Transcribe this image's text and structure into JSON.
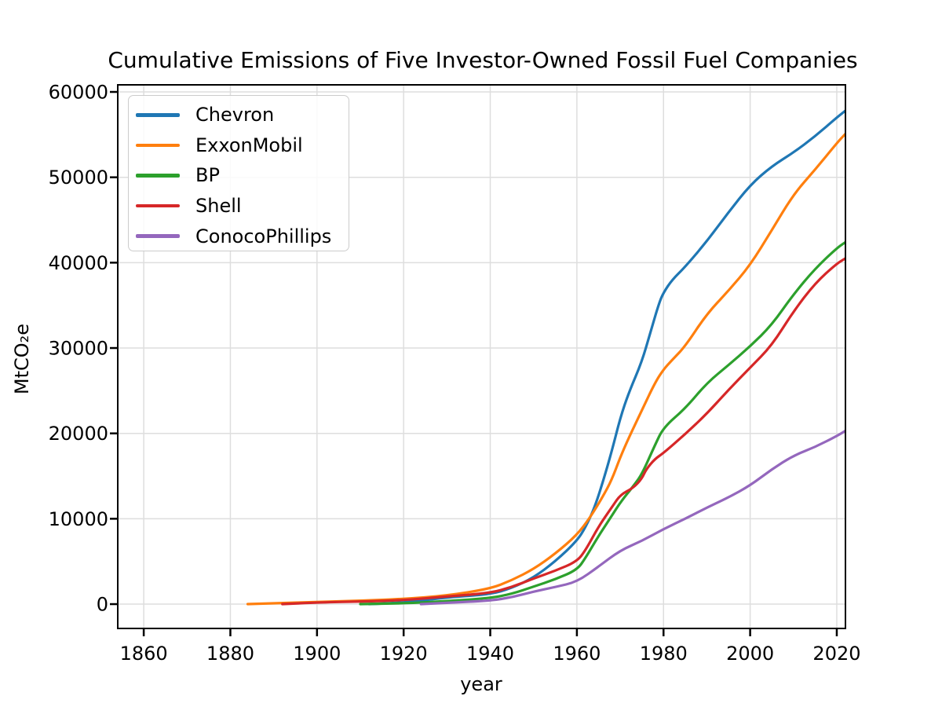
{
  "chart_data": {
    "type": "line",
    "title": "Cumulative Emissions of Five Investor-Owned Fossil Fuel Companies",
    "xlabel": "year",
    "ylabel": "MtCO₂e",
    "xlim": [
      1854,
      2022
    ],
    "ylim": [
      -2850,
      60830
    ],
    "x_ticks": [
      1860,
      1880,
      1900,
      1920,
      1940,
      1960,
      1980,
      2000,
      2020
    ],
    "y_ticks": [
      0,
      10000,
      20000,
      30000,
      40000,
      50000,
      60000
    ],
    "grid": true,
    "grid_color": "#dedede",
    "spine_color": "#000000",
    "legend_position": "upper left",
    "series": [
      {
        "name": "Chevron",
        "color": "#1f77b4",
        "points": [
          [
            1912,
            0
          ],
          [
            1920,
            150
          ],
          [
            1930,
            800
          ],
          [
            1940,
            1130
          ],
          [
            1945,
            1900
          ],
          [
            1950,
            3100
          ],
          [
            1955,
            5000
          ],
          [
            1960,
            7400
          ],
          [
            1962,
            9000
          ],
          [
            1964,
            11200
          ],
          [
            1966,
            14300
          ],
          [
            1968,
            17800
          ],
          [
            1970,
            21800
          ],
          [
            1972,
            24800
          ],
          [
            1975,
            28400
          ],
          [
            1977,
            31900
          ],
          [
            1979,
            35300
          ],
          [
            1980,
            36500
          ],
          [
            1982,
            38000
          ],
          [
            1985,
            39500
          ],
          [
            1990,
            42500
          ],
          [
            1995,
            45900
          ],
          [
            2000,
            49100
          ],
          [
            2005,
            51300
          ],
          [
            2010,
            52900
          ],
          [
            2015,
            54800
          ],
          [
            2020,
            57000
          ],
          [
            2022,
            57800
          ]
        ]
      },
      {
        "name": "ExxonMobil",
        "color": "#ff7f0e",
        "points": [
          [
            1884,
            0
          ],
          [
            1890,
            100
          ],
          [
            1900,
            250
          ],
          [
            1910,
            400
          ],
          [
            1920,
            600
          ],
          [
            1930,
            1000
          ],
          [
            1940,
            1800
          ],
          [
            1945,
            2800
          ],
          [
            1950,
            4100
          ],
          [
            1955,
            5900
          ],
          [
            1960,
            8100
          ],
          [
            1963,
            10100
          ],
          [
            1966,
            12600
          ],
          [
            1968,
            14500
          ],
          [
            1970,
            17200
          ],
          [
            1972,
            19500
          ],
          [
            1975,
            22700
          ],
          [
            1978,
            25900
          ],
          [
            1980,
            27500
          ],
          [
            1982,
            28600
          ],
          [
            1985,
            30200
          ],
          [
            1990,
            34000
          ],
          [
            1995,
            36700
          ],
          [
            2000,
            39700
          ],
          [
            2005,
            43800
          ],
          [
            2010,
            48000
          ],
          [
            2015,
            50900
          ],
          [
            2020,
            54000
          ],
          [
            2022,
            55100
          ]
        ]
      },
      {
        "name": "BP",
        "color": "#2ca02c",
        "points": [
          [
            1910,
            0
          ],
          [
            1920,
            80
          ],
          [
            1930,
            350
          ],
          [
            1940,
            700
          ],
          [
            1945,
            1200
          ],
          [
            1950,
            2050
          ],
          [
            1955,
            2900
          ],
          [
            1960,
            4000
          ],
          [
            1962,
            5400
          ],
          [
            1965,
            8000
          ],
          [
            1968,
            10300
          ],
          [
            1970,
            11900
          ],
          [
            1973,
            13800
          ],
          [
            1975,
            15200
          ],
          [
            1978,
            18600
          ],
          [
            1980,
            20700
          ],
          [
            1985,
            22900
          ],
          [
            1990,
            25900
          ],
          [
            1995,
            28000
          ],
          [
            2000,
            30200
          ],
          [
            2005,
            32700
          ],
          [
            2010,
            36300
          ],
          [
            2015,
            39300
          ],
          [
            2020,
            41700
          ],
          [
            2022,
            42400
          ]
        ]
      },
      {
        "name": "Shell",
        "color": "#d62728",
        "points": [
          [
            1892,
            0
          ],
          [
            1900,
            200
          ],
          [
            1910,
            300
          ],
          [
            1920,
            450
          ],
          [
            1930,
            900
          ],
          [
            1940,
            1300
          ],
          [
            1945,
            2000
          ],
          [
            1950,
            3000
          ],
          [
            1955,
            3900
          ],
          [
            1960,
            5000
          ],
          [
            1962,
            6300
          ],
          [
            1965,
            9100
          ],
          [
            1968,
            11300
          ],
          [
            1970,
            12800
          ],
          [
            1973,
            13600
          ],
          [
            1975,
            14700
          ],
          [
            1976,
            15800
          ],
          [
            1978,
            17000
          ],
          [
            1980,
            17700
          ],
          [
            1985,
            19900
          ],
          [
            1990,
            22300
          ],
          [
            1995,
            25100
          ],
          [
            2000,
            27700
          ],
          [
            2005,
            30300
          ],
          [
            2010,
            34300
          ],
          [
            2015,
            37600
          ],
          [
            2020,
            39900
          ],
          [
            2022,
            40500
          ]
        ]
      },
      {
        "name": "ConocoPhillips",
        "color": "#9467bd",
        "points": [
          [
            1924,
            0
          ],
          [
            1930,
            150
          ],
          [
            1940,
            400
          ],
          [
            1945,
            800
          ],
          [
            1950,
            1470
          ],
          [
            1955,
            2000
          ],
          [
            1960,
            2600
          ],
          [
            1965,
            4400
          ],
          [
            1970,
            6300
          ],
          [
            1975,
            7400
          ],
          [
            1980,
            8800
          ],
          [
            1985,
            10000
          ],
          [
            1990,
            11300
          ],
          [
            1995,
            12500
          ],
          [
            2000,
            13900
          ],
          [
            2005,
            15800
          ],
          [
            2010,
            17400
          ],
          [
            2015,
            18400
          ],
          [
            2020,
            19700
          ],
          [
            2022,
            20300
          ]
        ]
      }
    ]
  }
}
